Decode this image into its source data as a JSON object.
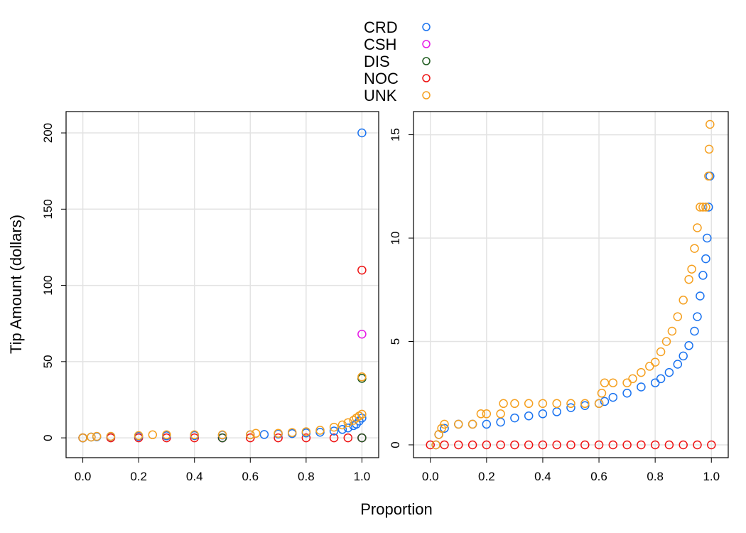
{
  "legend": {
    "entries": [
      {
        "label": "CRD",
        "color": "#1a73f0"
      },
      {
        "label": "CSH",
        "color": "#e619e6"
      },
      {
        "label": "DIS",
        "color": "#1e5a1e"
      },
      {
        "label": "NOC",
        "color": "#ee1111"
      },
      {
        "label": "UNK",
        "color": "#f5a020"
      }
    ]
  },
  "shared_axes": {
    "xlabel": "Proportion",
    "ylabel": "Tip Amount (dollars)"
  },
  "chart_data": [
    {
      "type": "scatter",
      "xlabel": "Proportion",
      "ylabel": "Tip Amount (dollars)",
      "xlim": [
        -0.06,
        1.06
      ],
      "ylim": [
        -13,
        214
      ],
      "xticks": [
        "0.0",
        "0.2",
        "0.4",
        "0.6",
        "0.8",
        "1.0"
      ],
      "yticks": [
        "0",
        "50",
        "100",
        "150",
        "200"
      ],
      "grid": true,
      "series": [
        {
          "name": "NOC",
          "color": "#ee1111",
          "x": [
            0.0,
            0.1,
            0.2,
            0.3,
            0.4,
            0.5,
            0.6,
            0.7,
            0.8,
            0.9,
            0.95,
            1.0,
            1.0
          ],
          "y": [
            0,
            0,
            0,
            0,
            0,
            0,
            0,
            0,
            0,
            0,
            0,
            0,
            110
          ]
        },
        {
          "name": "CSH",
          "color": "#e619e6",
          "x": [
            0.0,
            0.5,
            1.0,
            1.0
          ],
          "y": [
            0,
            0,
            0,
            68
          ]
        },
        {
          "name": "DIS",
          "color": "#1e5a1e",
          "x": [
            0.0,
            0.5,
            1.0,
            1.0
          ],
          "y": [
            0,
            0,
            0,
            39
          ]
        },
        {
          "name": "CRD",
          "color": "#1a73f0",
          "x": [
            0.0,
            0.03,
            0.05,
            0.1,
            0.2,
            0.3,
            0.4,
            0.5,
            0.6,
            0.65,
            0.7,
            0.75,
            0.8,
            0.85,
            0.9,
            0.93,
            0.95,
            0.97,
            0.98,
            0.99,
            1.0,
            1.0
          ],
          "y": [
            0,
            0.5,
            0.7,
            0.9,
            1.0,
            1.3,
            1.5,
            1.8,
            2.0,
            2.2,
            2.5,
            2.8,
            3.2,
            3.7,
            4.5,
            5.5,
            6.5,
            8.0,
            9.0,
            11.0,
            13.0,
            200
          ]
        },
        {
          "name": "UNK",
          "color": "#f5a020",
          "x": [
            0.0,
            0.03,
            0.05,
            0.1,
            0.2,
            0.25,
            0.3,
            0.4,
            0.5,
            0.6,
            0.62,
            0.7,
            0.75,
            0.8,
            0.85,
            0.9,
            0.93,
            0.95,
            0.97,
            0.98,
            0.99,
            1.0,
            1.0
          ],
          "y": [
            0,
            0.5,
            1.0,
            1.0,
            1.5,
            2.0,
            2.0,
            2.0,
            2.0,
            2.0,
            3.0,
            3.0,
            3.5,
            4.0,
            5.0,
            7.0,
            8.5,
            10.0,
            11.5,
            13.0,
            14.3,
            15.5,
            40
          ]
        }
      ]
    },
    {
      "type": "scatter",
      "xlabel": "Proportion",
      "ylabel": "",
      "xlim": [
        -0.06,
        1.06
      ],
      "ylim": [
        -0.62,
        16.12
      ],
      "xticks": [
        "0.0",
        "0.2",
        "0.4",
        "0.6",
        "0.8",
        "1.0"
      ],
      "yticks": [
        "0",
        "5",
        "10",
        "15"
      ],
      "grid": true,
      "series": [
        {
          "name": "NOC",
          "color": "#ee1111",
          "x": [
            0.0,
            0.05,
            0.1,
            0.15,
            0.2,
            0.25,
            0.3,
            0.35,
            0.4,
            0.45,
            0.5,
            0.55,
            0.6,
            0.65,
            0.7,
            0.75,
            0.8,
            0.85,
            0.9,
            0.95,
            1.0
          ],
          "y": [
            0,
            0,
            0,
            0,
            0,
            0,
            0,
            0,
            0,
            0,
            0,
            0,
            0,
            0,
            0,
            0,
            0,
            0,
            0,
            0,
            0
          ]
        },
        {
          "name": "CRD",
          "color": "#1a73f0",
          "x": [
            0.02,
            0.03,
            0.05,
            0.1,
            0.15,
            0.2,
            0.25,
            0.3,
            0.35,
            0.4,
            0.45,
            0.5,
            0.55,
            0.6,
            0.62,
            0.65,
            0.7,
            0.75,
            0.8,
            0.82,
            0.85,
            0.88,
            0.9,
            0.92,
            0.94,
            0.95,
            0.96,
            0.97,
            0.98,
            0.985,
            0.99,
            0.995
          ],
          "y": [
            0.0,
            0.5,
            0.8,
            1.0,
            1.0,
            1.0,
            1.1,
            1.3,
            1.4,
            1.5,
            1.6,
            1.8,
            1.9,
            2.0,
            2.1,
            2.3,
            2.5,
            2.8,
            3.0,
            3.2,
            3.5,
            3.9,
            4.3,
            4.8,
            5.5,
            6.2,
            7.2,
            8.2,
            9.0,
            10.0,
            11.5,
            13.0
          ]
        },
        {
          "name": "UNK",
          "color": "#f5a020",
          "x": [
            0.02,
            0.03,
            0.04,
            0.05,
            0.1,
            0.15,
            0.18,
            0.2,
            0.25,
            0.26,
            0.3,
            0.35,
            0.4,
            0.45,
            0.5,
            0.55,
            0.6,
            0.61,
            0.62,
            0.65,
            0.7,
            0.72,
            0.75,
            0.78,
            0.8,
            0.82,
            0.84,
            0.86,
            0.88,
            0.9,
            0.92,
            0.93,
            0.94,
            0.95,
            0.96,
            0.97,
            0.98,
            0.99,
            0.992,
            0.995
          ],
          "y": [
            0.0,
            0.5,
            0.8,
            1.0,
            1.0,
            1.0,
            1.5,
            1.5,
            1.5,
            2.0,
            2.0,
            2.0,
            2.0,
            2.0,
            2.0,
            2.0,
            2.0,
            2.5,
            3.0,
            3.0,
            3.0,
            3.2,
            3.5,
            3.8,
            4.0,
            4.5,
            5.0,
            5.5,
            6.2,
            7.0,
            8.0,
            8.5,
            9.5,
            10.5,
            11.5,
            11.5,
            11.5,
            13.0,
            14.3,
            15.5
          ]
        }
      ]
    }
  ]
}
